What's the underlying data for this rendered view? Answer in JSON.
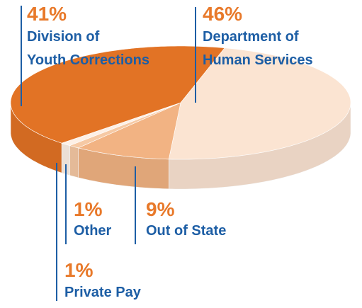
{
  "chart_data": {
    "type": "pie",
    "categories": [
      "Department of\nHuman Services",
      "Out of State",
      "Other",
      "Private Pay",
      "Division of\nYouth Corrections"
    ],
    "values": [
      46,
      9,
      1,
      1,
      41
    ],
    "value_labels": [
      "46%",
      "9%",
      "1%",
      "1%",
      "41%"
    ],
    "colors": [
      "#fbe4d2",
      "#f2b383",
      "#f6c9a4",
      "#fdf0e6",
      "#e27325"
    ]
  }
}
